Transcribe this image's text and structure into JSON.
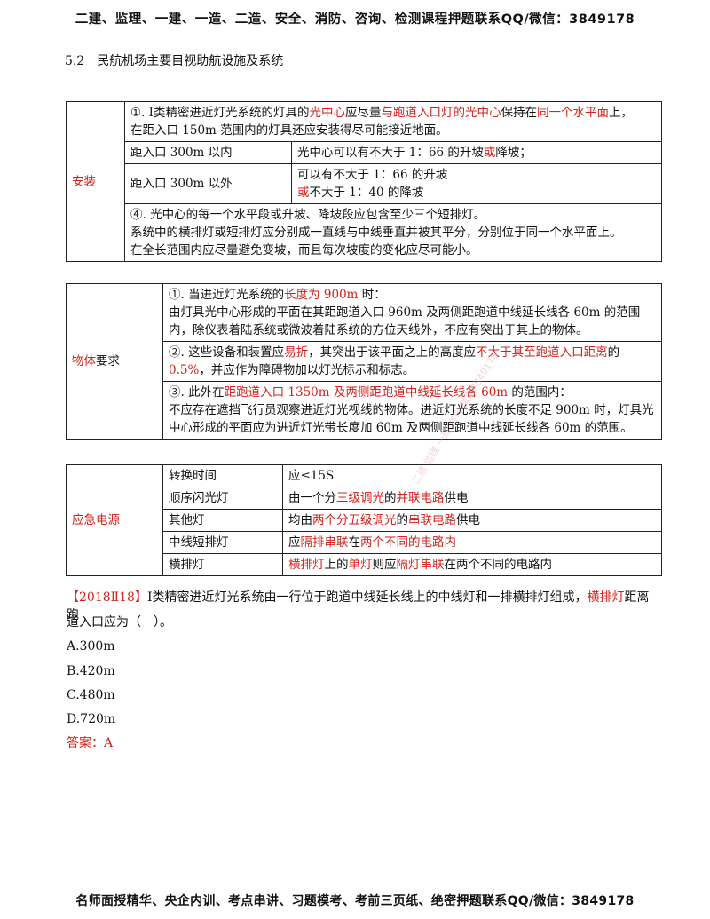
{
  "header": "二建、监理、一建、一造、二造、安全、消防、咨询、检测课程押题联系QQ/微信：3849178",
  "section_title": "5.2　民航机场主要目视助航设施及系统",
  "install": {
    "label": "安装",
    "r1_a": "①. Ⅰ类精密进近灯光系统的灯具的",
    "r1_b": "光中心",
    "r1_c": "应尽量",
    "r1_d": "与跑道入口灯的光中心",
    "r1_e": "保持在",
    "r1_f": "同一个水平面",
    "r1_g": "上，",
    "r1_line2": "在距入口 150m 范围内的灯具还应安装得尽可能接近地面。",
    "r2_left": "距入口 300m 以内",
    "r2_right_a": "光中心可以有不大于 1：66 的升坡",
    "r2_right_b": "或",
    "r2_right_c": "降坡；",
    "r3_left": "距入口 300m 以外",
    "r3_right_l1": "可以有不大于 1：66 的升坡",
    "r3_right_l2_a": "或",
    "r3_right_l2_b": "不大于 1：40 的降坡",
    "r4_l1": "④. 光中心的每一个水平段或升坡、降坡段应包含至少三个短排灯。",
    "r4_l2": "系统中的横排灯或短排灯应分别成一直线与中线垂直并被其平分，分别位于同一个水平面上。",
    "r4_l3": "在全长范围内应尽量避免变坡，而且每次坡度的变化应尽可能小。"
  },
  "objects": {
    "label_a": "物体",
    "label_b": "要求",
    "r1_a": "①. 当进近灯光系统的",
    "r1_b": "长度为 900m",
    "r1_c": " 时：",
    "r1_l2": "由灯具光中心形成的平面在其距跑道入口 960m 及两侧距跑道中线延长线各 60m 的范围内，除仪表着陆系统或微波着陆系统的方位天线外，不应有突出于其上的物体。",
    "r2_a": "②. 这些设备和装置应",
    "r2_b": "易折",
    "r2_c": "，其突出于该平面之上的高度应",
    "r2_d": "不大于其至跑道入口距离",
    "r2_e": "的",
    "r2_f": "0.5%",
    "r2_g": "，并应作为障碍物加以灯光标示和标志。",
    "r3_a": "③. 此外在",
    "r3_b": "距跑道入口 1350m 及两侧距跑道中线延长线各 60m",
    "r3_c": " 的范围内：",
    "r3_l2": "不应存在遮挡飞行员观察进近灯光视线的物体。进近灯光系统的长度不足 900m 时，灯具光中心形成的平面应为进近灯光带长度加 60m 及两侧距跑道中线延长线各 60m 的范围。"
  },
  "power": {
    "label": "应急电源",
    "rows": [
      {
        "name": "转换时间",
        "a": "应≤15S"
      },
      {
        "name": "顺序闪光灯",
        "a": "由一个分",
        "b": "三级调光",
        "c": "的",
        "d": "并联电路",
        "e": "供电"
      },
      {
        "name": "其他灯",
        "a": "均由",
        "b": "两个分五级调光",
        "c": "的",
        "d": "串联电路",
        "e": "供电"
      },
      {
        "name": "中线短排灯",
        "a": "应",
        "b": "隔排串联",
        "c": "在",
        "d": "两个不同的电路内",
        "e": ""
      },
      {
        "name": "横排灯",
        "a": "",
        "b": "横排灯",
        "c": "上的",
        "d": "单灯",
        "e": "则应",
        "f": "隔灯串联",
        "g": "在两个不同的电路内"
      }
    ]
  },
  "question": {
    "tag": "【2018Ⅱ18】",
    "stem_a": "Ⅰ类精密进近灯光系统由一行位于跑道中线延长线上的中线灯和一排横排灯组成，",
    "stem_b": "横排灯",
    "stem_c": "距离跑",
    "stem_line2": "道入口应为（　）。",
    "options": [
      "A.300m",
      "B.420m",
      "C.480m",
      "D.720m"
    ],
    "answer": "答案：A"
  },
  "watermark": "二建 监理 一建 资料 微信3849178",
  "footer": "名师面授精华、央企内训、考点串讲、习题模考、考前三页纸、绝密押题联系QQ/微信：3849178"
}
